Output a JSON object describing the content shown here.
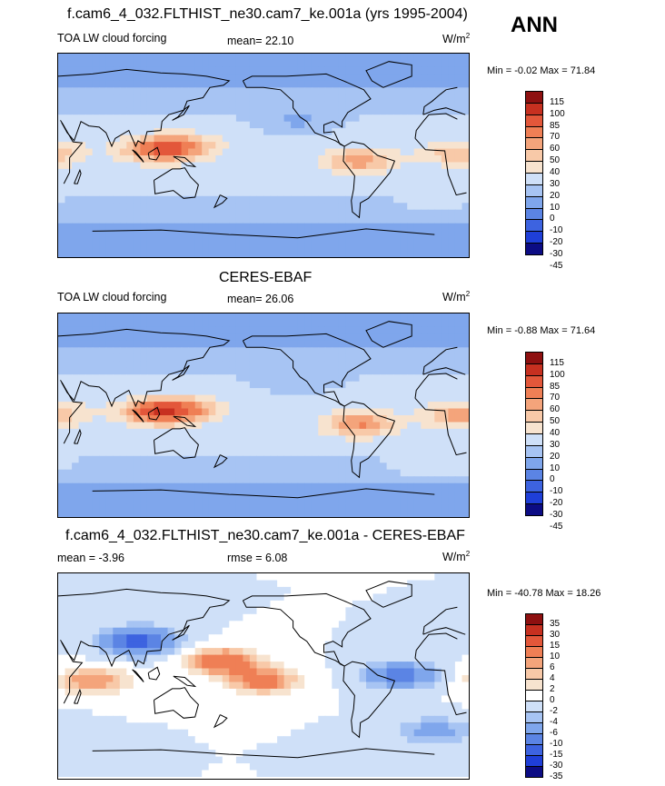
{
  "season": "ANN",
  "units_base": "W/m",
  "units_exp": "2",
  "colors": {
    "scale_main": [
      "#0c0c84",
      "#1f3fd8",
      "#3d63e0",
      "#5b84e4",
      "#7fa6ec",
      "#a7c4f3",
      "#cfe0f8",
      "#f7e3cf",
      "#f8c9a8",
      "#f4a47b",
      "#ef7f55",
      "#e3573a",
      "#c73020",
      "#8e1010"
    ],
    "scale_diff": [
      "#0c0c84",
      "#1f3fd8",
      "#3d63e0",
      "#5b84e4",
      "#7fa6ec",
      "#a7c4f3",
      "#cfe0f8",
      "#ffffff",
      "#f7e3cf",
      "#f8c9a8",
      "#f4a47b",
      "#ef7f55",
      "#e3573a",
      "#c73020",
      "#8e1010"
    ],
    "coast": "#000000"
  },
  "chart_data": [
    {
      "type": "heatmap",
      "title": "f.cam6_4_032.FLTHIST_ne30.cam7_ke.001a (yrs 1995-2004)",
      "left_label": "TOA LW cloud forcing",
      "stat_label": "mean=  22.10",
      "min_max": "Min =  -0.02 Max =  71.84",
      "mean": 22.1,
      "min": -0.02,
      "max": 71.84,
      "colorbar_levels": [
        "115",
        "100",
        "85",
        "70",
        "60",
        "50",
        "40",
        "30",
        "20",
        "10",
        "0",
        "-10",
        "-20",
        "-30",
        "-45"
      ],
      "features": [
        {
          "lon": 115,
          "lat": 5,
          "value": 55
        },
        {
          "lon": 140,
          "lat": 8,
          "value": 48
        },
        {
          "lon": -65,
          "lat": -5,
          "value": 50
        },
        {
          "lon": 22,
          "lat": 2,
          "value": 42
        },
        {
          "lon": -120,
          "lat": 30,
          "value": 5
        },
        {
          "lon": 0,
          "lat": -45,
          "value": 22
        }
      ]
    },
    {
      "type": "heatmap",
      "title": "CERES-EBAF",
      "left_label": "TOA LW cloud forcing",
      "stat_label": "mean=  26.06",
      "min_max": "Min =  -0.88 Max =  71.64",
      "mean": 26.06,
      "min": -0.88,
      "max": 71.64,
      "colorbar_levels": [
        "115",
        "100",
        "85",
        "70",
        "60",
        "50",
        "40",
        "30",
        "20",
        "10",
        "0",
        "-10",
        "-20",
        "-30",
        "-45"
      ],
      "features": [
        {
          "lon": 115,
          "lat": 3,
          "value": 62
        },
        {
          "lon": 140,
          "lat": 5,
          "value": 52
        },
        {
          "lon": -65,
          "lat": -8,
          "value": 55
        },
        {
          "lon": 22,
          "lat": 0,
          "value": 48
        },
        {
          "lon": -120,
          "lat": 30,
          "value": 8
        },
        {
          "lon": 0,
          "lat": -45,
          "value": 30
        }
      ]
    },
    {
      "type": "heatmap",
      "title": "f.cam6_4_032.FLTHIST_ne30.cam7_ke.001a - CERES-EBAF",
      "left_label": "mean =  -3.96",
      "stat_label": "rmse =   6.08",
      "min_max": "Min = -40.78 Max =  18.26",
      "mean": -3.96,
      "rmse": 6.08,
      "min": -40.78,
      "max": 18.26,
      "colorbar_levels": [
        "35",
        "30",
        "15",
        "10",
        "6",
        "4",
        "2",
        "0",
        "-2",
        "-4",
        "-6",
        "-10",
        "-15",
        "-30",
        "-35"
      ],
      "features": [
        {
          "lon": 175,
          "lat": 12,
          "value": 12
        },
        {
          "lon": -150,
          "lat": -5,
          "value": 10
        },
        {
          "lon": 60,
          "lat": -5,
          "value": 8
        },
        {
          "lon": 100,
          "lat": 30,
          "value": -15
        },
        {
          "lon": -30,
          "lat": 0,
          "value": -10
        },
        {
          "lon": 0,
          "lat": -50,
          "value": -6
        }
      ]
    }
  ]
}
